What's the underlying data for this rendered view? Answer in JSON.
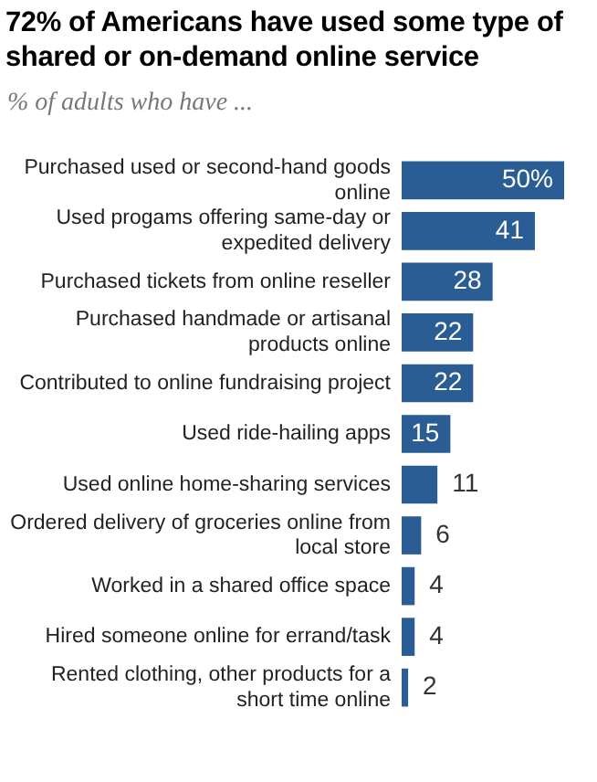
{
  "chart_data": {
    "type": "bar",
    "orientation": "horizontal",
    "title": "72% of Americans have used some type of shared or on-demand  online service",
    "subtitle": "% of adults who have ...",
    "categories": [
      "Purchased used or second-hand goods online",
      "Used progams offering same-day or expedited delivery",
      "Purchased tickets from online reseller",
      "Purchased handmade or artisanal products online",
      "Contributed to online fundraising project",
      "Used ride-hailing apps",
      "Used online home-sharing services",
      "Ordered delivery of groceries online from local store",
      "Worked in a shared office space",
      "Hired someone online for errand/task",
      "Rented clothing, other products for a short time online"
    ],
    "values": [
      50,
      41,
      28,
      22,
      22,
      15,
      11,
      6,
      4,
      4,
      2
    ],
    "value_labels": [
      "50%",
      "41",
      "28",
      "22",
      "22",
      "15",
      "11",
      "6",
      "4",
      "4",
      "2"
    ],
    "color": "#2b5d95",
    "grid": false,
    "legend": false,
    "tick_labels": "y"
  }
}
